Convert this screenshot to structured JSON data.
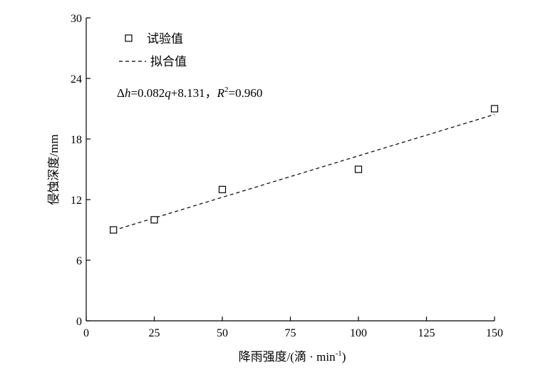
{
  "chart_data": {
    "type": "scatter",
    "xlabel_main": "降雨强度/(滴 · min",
    "xlabel_sup": "-1",
    "xlabel_close": ")",
    "ylabel": "侵蚀深度/mm",
    "xlim": [
      0,
      150
    ],
    "ylim": [
      0,
      30
    ],
    "x_ticks": [
      0,
      25,
      50,
      75,
      100,
      125,
      150
    ],
    "y_ticks": [
      0,
      6,
      12,
      18,
      24,
      30
    ],
    "grid": false,
    "legend_placement": "top-left",
    "series": [
      {
        "name": "试验值",
        "marker": "open-square",
        "x": [
          10,
          25,
          50,
          100,
          150
        ],
        "y": [
          9.0,
          10.0,
          13.0,
          15.0,
          21.0
        ]
      },
      {
        "name": "拟合值",
        "line_style": "dashed",
        "slope": 0.082,
        "intercept": 8.131,
        "x_range": [
          10,
          150
        ]
      }
    ],
    "equation": {
      "lhs_var": "h",
      "rhs_var": "q",
      "slope": "0.082",
      "intercept": "8.131",
      "r2": "0.960"
    }
  }
}
